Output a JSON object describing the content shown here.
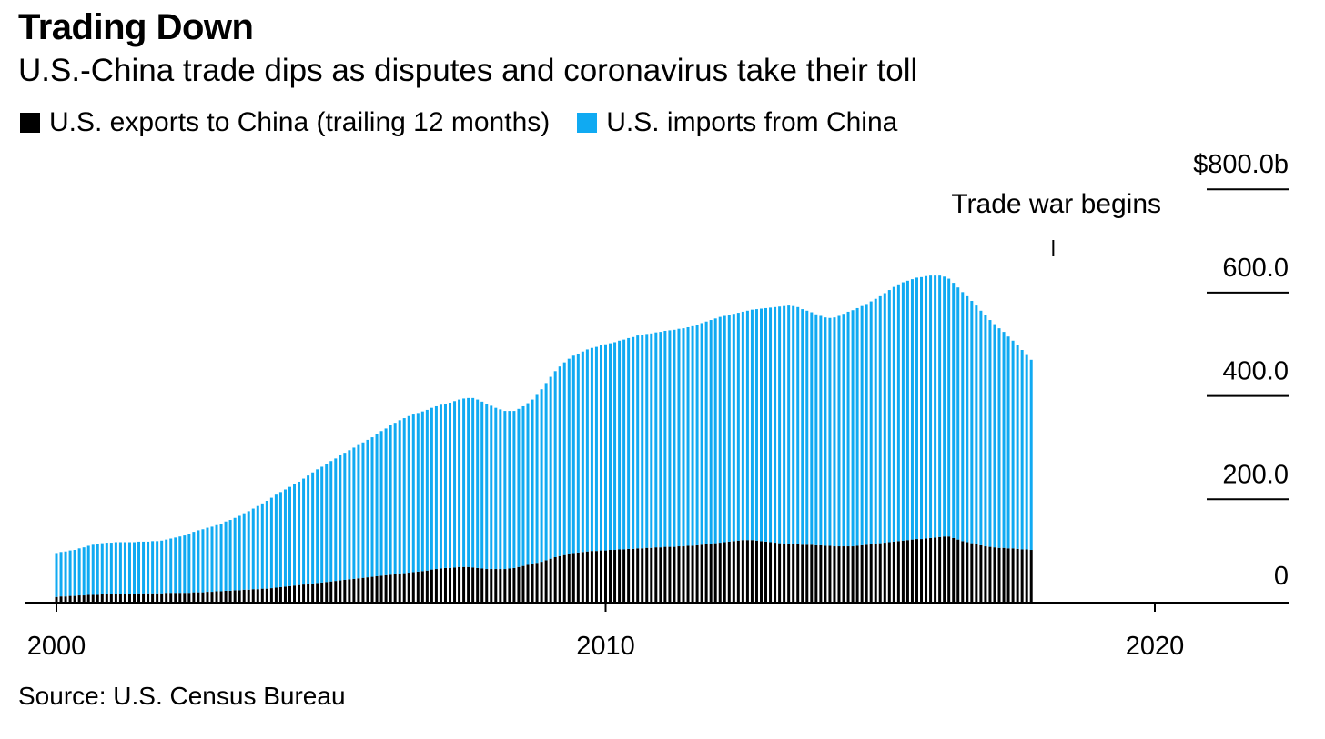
{
  "colors": {
    "exports": "#000000",
    "imports": "#10aaf2"
  },
  "chart_data": {
    "type": "bar",
    "stacked": true,
    "title": "Trading Down",
    "subtitle": "U.S.-China trade dips as disputes and coronavirus take their toll",
    "source": "Source: U.S. Census Bureau",
    "legend": [
      {
        "name": "U.S. exports to China (trailing 12 months)",
        "color": "#000000"
      },
      {
        "name": "U.S. imports from China",
        "color": "#10aaf2"
      }
    ],
    "y_ticks": [
      {
        "value": 800,
        "label": "$800.0b"
      },
      {
        "value": 600,
        "label": "600.0"
      },
      {
        "value": 400,
        "label": "400.0"
      },
      {
        "value": 200,
        "label": "200.0"
      },
      {
        "value": 0,
        "label": "0"
      }
    ],
    "x_ticks": [
      {
        "value": 2000,
        "label": "2000"
      },
      {
        "value": 2010,
        "label": "2010"
      },
      {
        "value": 2020,
        "label": "2020"
      }
    ],
    "ylim": [
      0,
      800
    ],
    "xlim": [
      2000,
      2022.5
    ],
    "annotation": {
      "text": "Trade war begins",
      "x": 2018.15
    },
    "start": 2000.0,
    "step": 0.0833333,
    "series": [
      {
        "name": "U.S. exports to China (trailing 12 months)",
        "values": [
          11,
          12,
          12,
          13,
          13,
          14,
          14,
          15,
          15,
          15,
          16,
          16,
          16,
          17,
          17,
          17,
          17,
          17,
          18,
          18,
          18,
          18,
          18,
          18,
          19,
          19,
          19,
          19,
          19,
          19,
          20,
          20,
          20,
          21,
          21,
          22,
          22,
          23,
          23,
          24,
          24,
          25,
          25,
          26,
          26,
          27,
          27,
          28,
          29,
          30,
          31,
          32,
          33,
          34,
          35,
          36,
          37,
          38,
          39,
          40,
          41,
          42,
          43,
          44,
          45,
          46,
          47,
          48,
          49,
          50,
          51,
          52,
          53,
          54,
          55,
          56,
          57,
          58,
          59,
          60,
          61,
          62,
          64,
          65,
          66,
          67,
          67,
          68,
          69,
          69,
          69,
          68,
          67,
          66,
          65,
          65,
          65,
          65,
          65,
          66,
          67,
          69,
          71,
          73,
          75,
          77,
          79,
          82,
          85,
          88,
          90,
          92,
          94,
          96,
          97,
          98,
          99,
          100,
          100,
          101,
          101,
          102,
          102,
          103,
          103,
          104,
          104,
          105,
          105,
          106,
          106,
          107,
          107,
          108,
          108,
          108,
          109,
          109,
          110,
          110,
          111,
          112,
          113,
          114,
          115,
          116,
          117,
          118,
          119,
          120,
          121,
          121,
          121,
          120,
          119,
          118,
          117,
          116,
          115,
          114,
          113,
          113,
          113,
          112,
          112,
          112,
          111,
          111,
          110,
          110,
          109,
          109,
          109,
          109,
          109,
          110,
          111,
          112,
          113,
          114,
          115,
          116,
          117,
          118,
          119,
          120,
          121,
          122,
          123,
          123,
          124,
          125,
          126,
          127,
          128,
          128,
          125,
          122,
          119,
          117,
          115,
          113,
          111,
          109,
          108,
          107,
          106,
          106,
          105,
          105,
          104,
          103,
          103,
          102
        ]
      },
      {
        "name": "U.S. imports from China",
        "values": [
          85,
          86,
          87,
          88,
          89,
          91,
          93,
          95,
          97,
          98,
          99,
          100,
          100,
          100,
          100,
          100,
          100,
          100,
          100,
          100,
          100,
          101,
          101,
          102,
          103,
          105,
          107,
          109,
          111,
          114,
          117,
          120,
          122,
          124,
          126,
          128,
          131,
          134,
          137,
          140,
          144,
          148,
          152,
          156,
          161,
          165,
          170,
          175,
          180,
          184,
          188,
          192,
          196,
          200,
          205,
          210,
          215,
          220,
          224,
          228,
          233,
          237,
          242,
          246,
          250,
          254,
          258,
          262,
          266,
          270,
          275,
          280,
          284,
          289,
          293,
          297,
          300,
          303,
          305,
          307,
          309,
          311,
          313,
          315,
          317,
          318,
          320,
          322,
          324,
          326,
          327,
          328,
          326,
          323,
          320,
          316,
          312,
          309,
          306,
          305,
          304,
          306,
          309,
          313,
          318,
          325,
          334,
          343,
          352,
          360,
          367,
          373,
          378,
          382,
          385,
          388,
          391,
          393,
          395,
          397,
          399,
          400,
          402,
          404,
          406,
          408,
          410,
          412,
          413,
          414,
          415,
          416,
          417,
          418,
          419,
          420,
          421,
          422,
          423,
          425,
          427,
          429,
          431,
          433,
          435,
          437,
          438,
          439,
          440,
          441,
          442,
          444,
          446,
          448,
          450,
          452,
          454,
          456,
          458,
          460,
          462,
          461,
          459,
          456,
          453,
          450,
          447,
          444,
          442,
          441,
          443,
          446,
          450,
          454,
          457,
          460,
          463,
          466,
          470,
          474,
          478,
          483,
          488,
          493,
          497,
          500,
          502,
          504,
          506,
          507,
          508,
          508,
          507,
          506,
          503,
          499,
          494,
          488,
          482,
          476,
          469,
          462,
          454,
          447,
          439,
          432,
          425,
          418,
          410,
          402,
          394,
          386,
          378,
          368
        ]
      }
    ]
  }
}
